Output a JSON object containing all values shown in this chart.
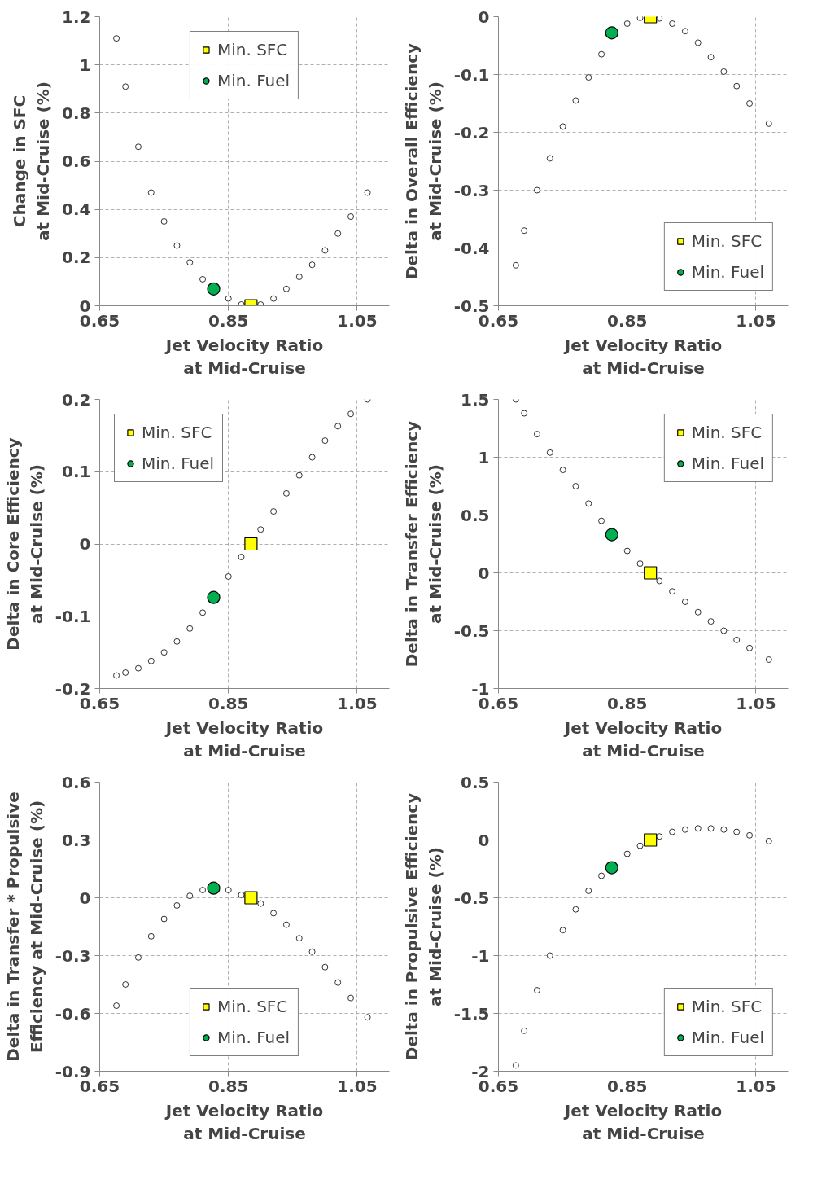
{
  "chart_data": [
    {
      "type": "scatter",
      "xlabel": "Jet Velocity Ratio\nat Mid-Cruise",
      "ylabel": "Change in SFC\nat Mid-Cruise (%)",
      "xlim": [
        0.65,
        1.1
      ],
      "xticks": [
        0.65,
        0.85,
        1.05
      ],
      "ylim": [
        0,
        1.2
      ],
      "yticks": [
        0,
        0.2,
        0.4,
        0.6,
        0.8,
        1,
        1.2
      ],
      "grid": true,
      "legend": "top",
      "series": [
        {
          "color": "#ffffff",
          "marker": "circle",
          "x": [
            0.676,
            0.69,
            0.71,
            0.73,
            0.75,
            0.77,
            0.79,
            0.81,
            0.85,
            0.87,
            0.9,
            0.92,
            0.94,
            0.96,
            0.98,
            1.0,
            1.02,
            1.04,
            1.066
          ],
          "values": [
            1.11,
            0.91,
            0.66,
            0.47,
            0.35,
            0.25,
            0.18,
            0.11,
            0.03,
            0.005,
            0.005,
            0.03,
            0.07,
            0.12,
            0.17,
            0.23,
            0.3,
            0.37,
            0.47
          ]
        },
        {
          "name": "Min. SFC",
          "color": "#ffff00",
          "marker": "square",
          "x": [
            0.885
          ],
          "values": [
            0
          ]
        },
        {
          "name": "Min. Fuel",
          "color": "#00b050",
          "marker": "circle",
          "x": [
            0.827
          ],
          "values": [
            0.07
          ]
        }
      ]
    },
    {
      "type": "scatter",
      "xlabel": "Jet Velocity Ratio\nat Mid-Cruise",
      "ylabel": "Delta in Overall Efficiency\nat Mid-Cruise (%)",
      "xlim": [
        0.65,
        1.1
      ],
      "xticks": [
        0.65,
        0.85,
        1.05
      ],
      "ylim": [
        -0.5,
        0
      ],
      "yticks": [
        -0.5,
        -0.4,
        -0.3,
        -0.2,
        -0.1,
        0
      ],
      "grid": true,
      "legend": "bottom right",
      "series": [
        {
          "color": "#ffffff",
          "marker": "circle",
          "x": [
            0.677,
            0.69,
            0.71,
            0.73,
            0.75,
            0.77,
            0.79,
            0.81,
            0.85,
            0.87,
            0.9,
            0.92,
            0.94,
            0.96,
            0.98,
            1.0,
            1.02,
            1.04,
            1.07
          ],
          "values": [
            -0.43,
            -0.37,
            -0.3,
            -0.245,
            -0.19,
            -0.145,
            -0.105,
            -0.065,
            -0.012,
            -0.002,
            -0.003,
            -0.012,
            -0.025,
            -0.045,
            -0.07,
            -0.095,
            -0.12,
            -0.15,
            -0.185
          ]
        },
        {
          "name": "Min. SFC",
          "color": "#ffff00",
          "marker": "square",
          "x": [
            0.886
          ],
          "values": [
            0
          ]
        },
        {
          "name": "Min. Fuel",
          "color": "#00b050",
          "marker": "circle",
          "x": [
            0.826
          ],
          "values": [
            -0.028
          ]
        }
      ]
    },
    {
      "type": "scatter",
      "xlabel": "Jet Velocity Ratio\nat Mid-Cruise",
      "ylabel": "Delta in Core Efficiency\nat Mid-Cruise (%)",
      "xlim": [
        0.65,
        1.1
      ],
      "xticks": [
        0.65,
        0.85,
        1.05
      ],
      "ylim": [
        -0.2,
        0.2
      ],
      "yticks": [
        -0.2,
        -0.1,
        0,
        0.1,
        0.2
      ],
      "grid": true,
      "legend": "top left",
      "series": [
        {
          "color": "#ffffff",
          "marker": "circle",
          "x": [
            0.676,
            0.69,
            0.71,
            0.73,
            0.75,
            0.77,
            0.79,
            0.81,
            0.85,
            0.87,
            0.9,
            0.92,
            0.94,
            0.96,
            0.98,
            1.0,
            1.02,
            1.04,
            1.066
          ],
          "values": [
            -0.182,
            -0.178,
            -0.172,
            -0.162,
            -0.15,
            -0.135,
            -0.117,
            -0.095,
            -0.045,
            -0.018,
            0.02,
            0.045,
            0.07,
            0.095,
            0.12,
            0.143,
            0.163,
            0.18,
            0.2
          ]
        },
        {
          "name": "Min. SFC",
          "color": "#ffff00",
          "marker": "square",
          "x": [
            0.885
          ],
          "values": [
            0
          ]
        },
        {
          "name": "Min. Fuel",
          "color": "#00b050",
          "marker": "circle",
          "x": [
            0.827
          ],
          "values": [
            -0.074
          ]
        }
      ]
    },
    {
      "type": "scatter",
      "xlabel": "Jet Velocity Ratio\nat Mid-Cruise",
      "ylabel": "Delta in Transfer Efficiency\nat Mid-Cruise (%)",
      "xlim": [
        0.65,
        1.1
      ],
      "xticks": [
        0.65,
        0.85,
        1.05
      ],
      "ylim": [
        -1,
        1.5
      ],
      "yticks": [
        -1,
        -0.5,
        0,
        0.5,
        1,
        1.5
      ],
      "grid": true,
      "legend": "top right",
      "series": [
        {
          "color": "#ffffff",
          "marker": "circle",
          "x": [
            0.677,
            0.69,
            0.71,
            0.73,
            0.75,
            0.77,
            0.79,
            0.81,
            0.85,
            0.87,
            0.9,
            0.92,
            0.94,
            0.96,
            0.98,
            1.0,
            1.02,
            1.04,
            1.07
          ],
          "values": [
            1.5,
            1.38,
            1.2,
            1.04,
            0.89,
            0.75,
            0.6,
            0.45,
            0.19,
            0.08,
            -0.07,
            -0.16,
            -0.25,
            -0.34,
            -0.42,
            -0.5,
            -0.58,
            -0.65,
            -0.75
          ]
        },
        {
          "name": "Min. SFC",
          "color": "#ffff00",
          "marker": "square",
          "x": [
            0.886
          ],
          "values": [
            0
          ]
        },
        {
          "name": "Min. Fuel",
          "color": "#00b050",
          "marker": "circle",
          "x": [
            0.826
          ],
          "values": [
            0.33
          ]
        }
      ]
    },
    {
      "type": "scatter",
      "xlabel": "Jet Velocity Ratio\nat Mid-Cruise",
      "ylabel": "Delta in Transfer * Propulsive\nEfficiency at Mid-Cruise (%)",
      "xlim": [
        0.65,
        1.1
      ],
      "xticks": [
        0.65,
        0.85,
        1.05
      ],
      "ylim": [
        -0.9,
        0.6
      ],
      "yticks": [
        -0.9,
        -0.6,
        -0.3,
        0,
        0.3,
        0.6
      ],
      "grid": true,
      "legend": "bottom",
      "series": [
        {
          "color": "#ffffff",
          "marker": "circle",
          "x": [
            0.676,
            0.69,
            0.71,
            0.73,
            0.75,
            0.77,
            0.79,
            0.81,
            0.85,
            0.87,
            0.9,
            0.92,
            0.94,
            0.96,
            0.98,
            1.0,
            1.02,
            1.04,
            1.066
          ],
          "values": [
            -0.56,
            -0.45,
            -0.31,
            -0.2,
            -0.11,
            -0.04,
            0.01,
            0.04,
            0.04,
            0.015,
            -0.03,
            -0.08,
            -0.14,
            -0.21,
            -0.28,
            -0.36,
            -0.44,
            -0.52,
            -0.62
          ]
        },
        {
          "name": "Min. SFC",
          "color": "#ffff00",
          "marker": "square",
          "x": [
            0.885
          ],
          "values": [
            0
          ]
        },
        {
          "name": "Min. Fuel",
          "color": "#00b050",
          "marker": "circle",
          "x": [
            0.827
          ],
          "values": [
            0.05
          ]
        }
      ]
    },
    {
      "type": "scatter",
      "xlabel": "Jet Velocity Ratio\nat Mid-Cruise",
      "ylabel": "Delta in Propulsive Efficiency\nat Mid-Cruise (%)",
      "xlim": [
        0.65,
        1.1
      ],
      "xticks": [
        0.65,
        0.85,
        1.05
      ],
      "ylim": [
        -2,
        0.5
      ],
      "yticks": [
        -2,
        -1.5,
        -1,
        -0.5,
        0,
        0.5
      ],
      "grid": true,
      "legend": "bottom right",
      "series": [
        {
          "color": "#ffffff",
          "marker": "circle",
          "x": [
            0.677,
            0.69,
            0.71,
            0.73,
            0.75,
            0.77,
            0.79,
            0.81,
            0.85,
            0.87,
            0.9,
            0.92,
            0.94,
            0.96,
            0.98,
            1.0,
            1.02,
            1.04,
            1.07
          ],
          "values": [
            -1.95,
            -1.65,
            -1.3,
            -1.0,
            -0.78,
            -0.6,
            -0.44,
            -0.31,
            -0.12,
            -0.05,
            0.03,
            0.07,
            0.09,
            0.1,
            0.1,
            0.09,
            0.07,
            0.04,
            -0.01
          ]
        },
        {
          "name": "Min. SFC",
          "color": "#ffff00",
          "marker": "square",
          "x": [
            0.886
          ],
          "values": [
            0
          ]
        },
        {
          "name": "Min. Fuel",
          "color": "#00b050",
          "marker": "circle",
          "x": [
            0.826
          ],
          "values": [
            -0.24
          ]
        }
      ]
    }
  ]
}
